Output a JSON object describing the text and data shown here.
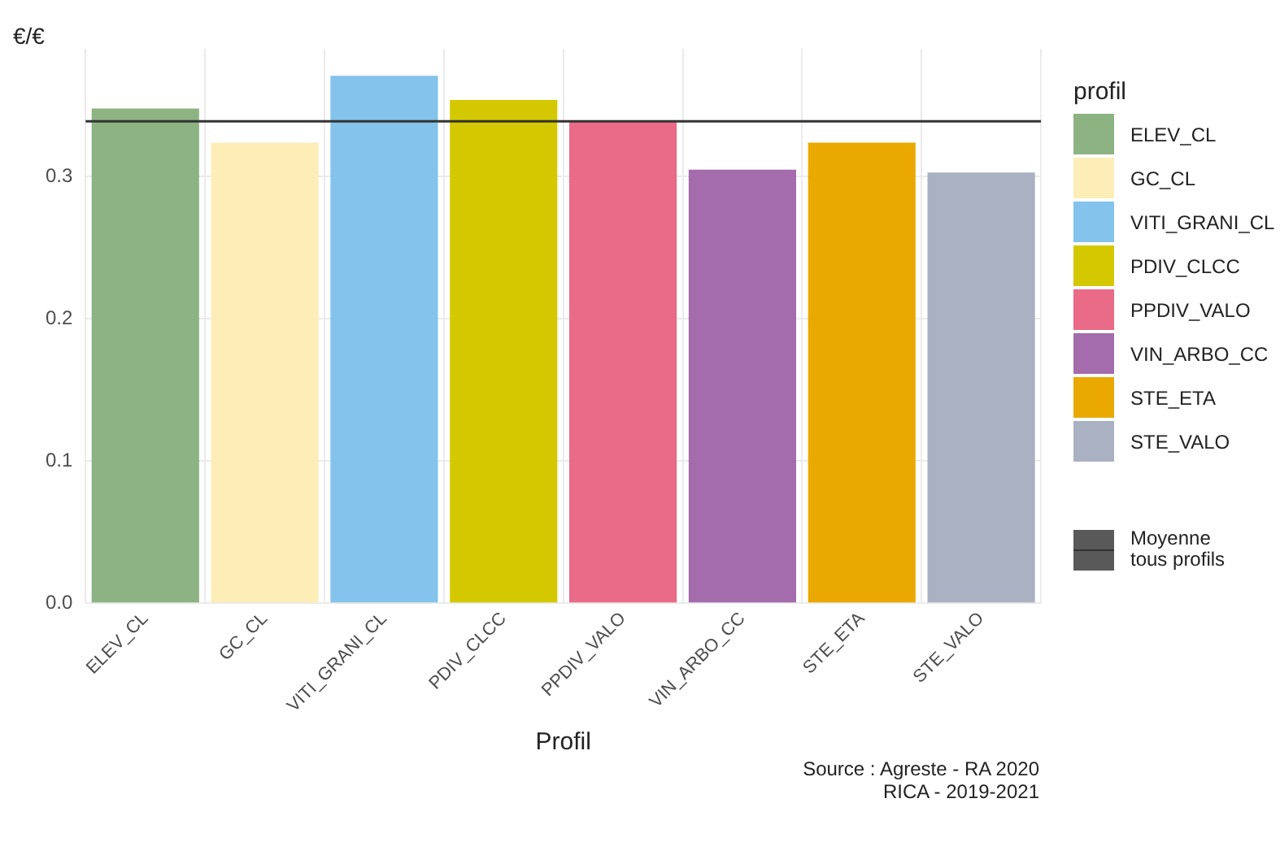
{
  "chart_data": {
    "type": "bar",
    "xlabel": "Profil",
    "ylabel": "€/€",
    "legend_title": "profil",
    "categories": [
      "ELEV_CL",
      "GC_CL",
      "VITI_GRANI_CL",
      "PDIV_CLCC",
      "PPDIV_VALO",
      "VIN_ARBO_CC",
      "STE_ETA",
      "STE_VALO"
    ],
    "values": [
      0.348,
      0.324,
      0.371,
      0.354,
      0.339,
      0.305,
      0.324,
      0.303
    ],
    "colors": [
      "#8db383",
      "#fdeeb8",
      "#83c3ec",
      "#d4c900",
      "#e96b87",
      "#a46bad",
      "#eaa900",
      "#aab1c2"
    ],
    "ylim": [
      0,
      0.39
    ],
    "yticks": [
      {
        "value": 0,
        "label": "0.0"
      },
      0.1,
      0.2,
      0.3
    ],
    "grid": true,
    "legend": "right",
    "ref_lines": [
      {
        "axis": "y",
        "value": 0.339,
        "label": "Moyenne\ntous profils",
        "color": "#333333"
      }
    ],
    "annotations": [
      "Source : Agreste - RA 2020\nRICA - 2019-2021"
    ]
  }
}
